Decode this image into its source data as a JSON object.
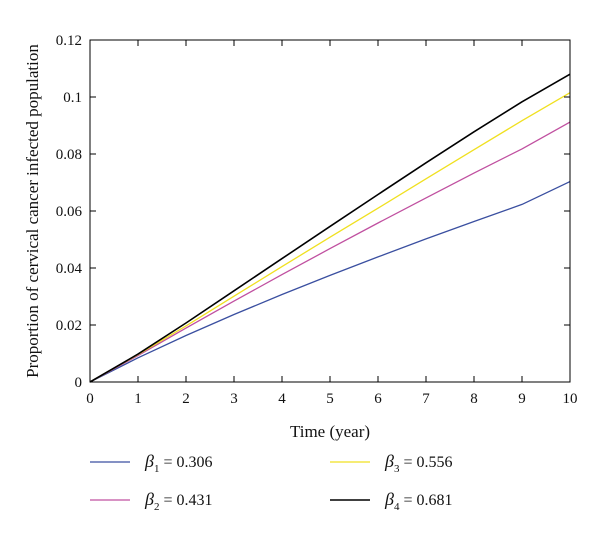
{
  "chart_data": {
    "type": "line",
    "title": "",
    "xlabel": "Time (year)",
    "ylabel": "Proportion of cervical cancer infected population",
    "xlim": [
      0,
      10
    ],
    "ylim": [
      0,
      0.12
    ],
    "xticks": [
      "0",
      "1",
      "2",
      "3",
      "4",
      "5",
      "6",
      "7",
      "8",
      "9",
      "10"
    ],
    "yticks": [
      "0",
      "0.02",
      "0.04",
      "0.06",
      "0.08",
      "0.1",
      "0.12"
    ],
    "grid": false,
    "legend_position": "bottom",
    "x": [
      0,
      1,
      2,
      3,
      4,
      5,
      6,
      7,
      8,
      9,
      10
    ],
    "series": [
      {
        "name": "β1 = 0.306",
        "symbol": "β",
        "subscript": "1",
        "value_text": "= 0.306",
        "color": "#3a4fa0",
        "values": [
          0,
          0.0085,
          0.0163,
          0.0237,
          0.0307,
          0.0374,
          0.0439,
          0.0502,
          0.0563,
          0.0623,
          0.0703
        ]
      },
      {
        "name": "β2 = 0.431",
        "symbol": "β",
        "subscript": "2",
        "value_text": "= 0.431",
        "color": "#c050a0",
        "values": [
          0,
          0.0093,
          0.0189,
          0.0284,
          0.0377,
          0.0468,
          0.0558,
          0.0646,
          0.0733,
          0.0818,
          0.0912
        ]
      },
      {
        "name": "β3 = 0.556",
        "symbol": "β",
        "subscript": "3",
        "value_text": "= 0.556",
        "color": "#f0e020",
        "values": [
          0,
          0.0096,
          0.0197,
          0.0301,
          0.0405,
          0.0508,
          0.061,
          0.0713,
          0.0815,
          0.0917,
          0.1015
        ]
      },
      {
        "name": "β4 = 0.681",
        "symbol": "β",
        "subscript": "4",
        "value_text": "= 0.681",
        "color": "#000000",
        "values": [
          0,
          0.0098,
          0.0207,
          0.032,
          0.0433,
          0.0546,
          0.0658,
          0.0769,
          0.0878,
          0.0983,
          0.108
        ]
      }
    ]
  }
}
